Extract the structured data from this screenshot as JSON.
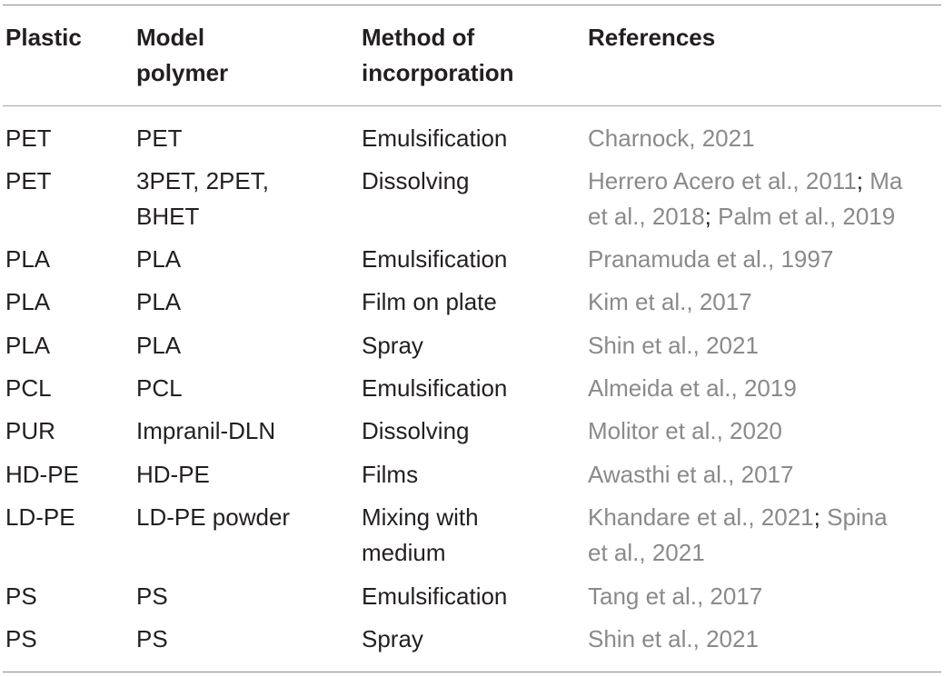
{
  "table": {
    "headers": {
      "plastic": "Plastic",
      "model_polymer_line1": "Model",
      "model_polymer_line2": "polymer",
      "method_line1": "Method of",
      "method_line2": "incorporation",
      "references": "References"
    },
    "rows": [
      {
        "plastic": "PET",
        "polymer_l1": "PET",
        "polymer_l2": "",
        "method_l1": "Emulsification",
        "method_l2": "",
        "ref_a_l1": "Charnock, 2021",
        "sep_l1": "",
        "ref_b_l1": "",
        "ref_a_l2": "",
        "sep_l2": "",
        "ref_b_l2": ""
      },
      {
        "plastic": "PET",
        "polymer_l1": "3PET, 2PET,",
        "polymer_l2": "BHET",
        "method_l1": "Dissolving",
        "method_l2": "",
        "ref_a_l1": "Herrero Acero et al., 2011",
        "sep_l1": ";",
        "ref_b_l1": " Ma",
        "ref_a_l2": "et al., 2018",
        "sep_l2": ";",
        "ref_b_l2": " Palm et al., 2019"
      },
      {
        "plastic": "PLA",
        "polymer_l1": "PLA",
        "polymer_l2": "",
        "method_l1": "Emulsification",
        "method_l2": "",
        "ref_a_l1": "Pranamuda et al., 1997",
        "sep_l1": "",
        "ref_b_l1": "",
        "ref_a_l2": "",
        "sep_l2": "",
        "ref_b_l2": ""
      },
      {
        "plastic": "PLA",
        "polymer_l1": "PLA",
        "polymer_l2": "",
        "method_l1": "Film on plate",
        "method_l2": "",
        "ref_a_l1": "Kim et al., 2017",
        "sep_l1": "",
        "ref_b_l1": "",
        "ref_a_l2": "",
        "sep_l2": "",
        "ref_b_l2": ""
      },
      {
        "plastic": "PLA",
        "polymer_l1": "PLA",
        "polymer_l2": "",
        "method_l1": "Spray",
        "method_l2": "",
        "ref_a_l1": "Shin et al., 2021",
        "sep_l1": "",
        "ref_b_l1": "",
        "ref_a_l2": "",
        "sep_l2": "",
        "ref_b_l2": ""
      },
      {
        "plastic": "PCL",
        "polymer_l1": "PCL",
        "polymer_l2": "",
        "method_l1": "Emulsification",
        "method_l2": "",
        "ref_a_l1": "Almeida et al., 2019",
        "sep_l1": "",
        "ref_b_l1": "",
        "ref_a_l2": "",
        "sep_l2": "",
        "ref_b_l2": ""
      },
      {
        "plastic": "PUR",
        "polymer_l1": "Impranil-DLN",
        "polymer_l2": "",
        "method_l1": "Dissolving",
        "method_l2": "",
        "ref_a_l1": "Molitor et al., 2020",
        "sep_l1": "",
        "ref_b_l1": "",
        "ref_a_l2": "",
        "sep_l2": "",
        "ref_b_l2": ""
      },
      {
        "plastic": "HD-PE",
        "polymer_l1": "HD-PE",
        "polymer_l2": "",
        "method_l1": "Films",
        "method_l2": "",
        "ref_a_l1": "Awasthi et al., 2017",
        "sep_l1": "",
        "ref_b_l1": "",
        "ref_a_l2": "",
        "sep_l2": "",
        "ref_b_l2": ""
      },
      {
        "plastic": "LD-PE",
        "polymer_l1": "LD-PE powder",
        "polymer_l2": "",
        "method_l1": "Mixing with",
        "method_l2": "medium",
        "ref_a_l1": "Khandare et al., 2021",
        "sep_l1": ";",
        "ref_b_l1": " Spina",
        "ref_a_l2": "et al., 2021",
        "sep_l2": "",
        "ref_b_l2": ""
      },
      {
        "plastic": "PS",
        "polymer_l1": "PS",
        "polymer_l2": "",
        "method_l1": "Emulsification",
        "method_l2": "",
        "ref_a_l1": "Tang et al., 2017",
        "sep_l1": "",
        "ref_b_l1": "",
        "ref_a_l2": "",
        "sep_l2": "",
        "ref_b_l2": ""
      },
      {
        "plastic": "PS",
        "polymer_l1": "PS",
        "polymer_l2": "",
        "method_l1": "Spray",
        "method_l2": "",
        "ref_a_l1": "Shin et al., 2021",
        "sep_l1": "",
        "ref_b_l1": "",
        "ref_a_l2": "",
        "sep_l2": "",
        "ref_b_l2": ""
      }
    ]
  },
  "colors": {
    "text": "#231f20",
    "reference_link": "#8a8a8a",
    "rule": "#8c8c8c"
  }
}
